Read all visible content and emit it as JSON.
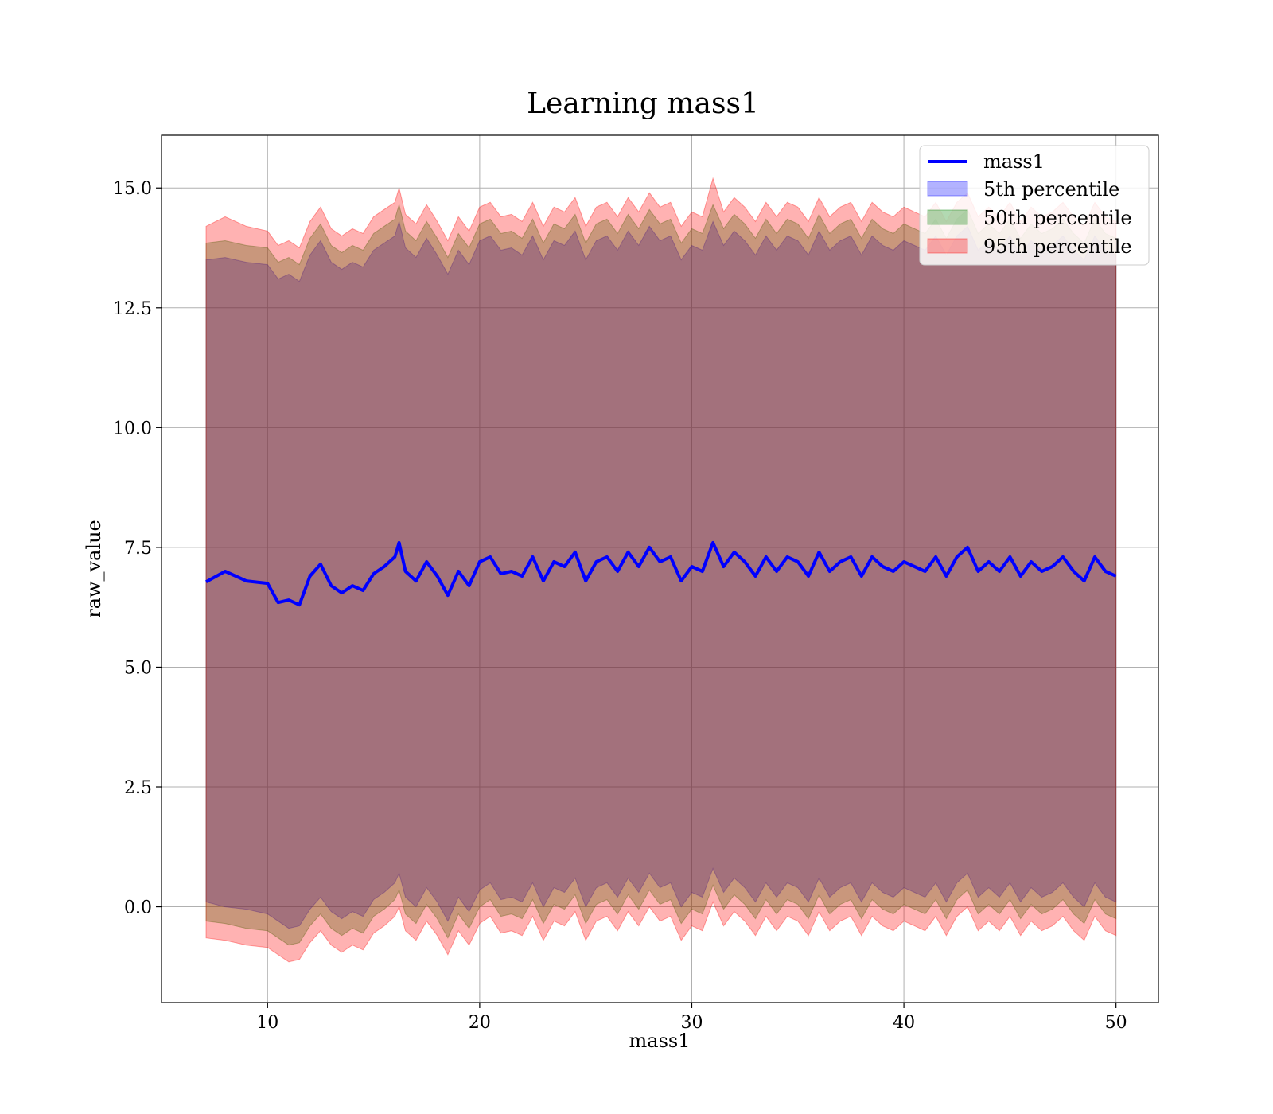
{
  "chart_data": {
    "type": "area",
    "title": "Learning mass1",
    "xlabel": "mass1",
    "ylabel": "raw_value",
    "xlim": [
      5,
      52
    ],
    "ylim": [
      -2.0,
      16.1
    ],
    "xticks": [
      10,
      20,
      30,
      40,
      50
    ],
    "xtick_labels": [
      "10",
      "20",
      "30",
      "40",
      "50"
    ],
    "yticks": [
      0.0,
      2.5,
      5.0,
      7.5,
      10.0,
      12.5,
      15.0
    ],
    "ytick_labels": [
      "0.0",
      "2.5",
      "5.0",
      "7.5",
      "10.0",
      "12.5",
      "15.0"
    ],
    "grid": true,
    "legend_position": "top-right",
    "x": [
      7.1,
      8.0,
      9.0,
      10.0,
      10.5,
      11.0,
      11.5,
      12.0,
      12.5,
      13.0,
      13.5,
      14.0,
      14.5,
      15.0,
      15.5,
      16.0,
      16.2,
      16.5,
      17.0,
      17.5,
      18.0,
      18.5,
      19.0,
      19.5,
      20.0,
      20.5,
      21.0,
      21.5,
      22.0,
      22.5,
      23.0,
      23.5,
      24.0,
      24.5,
      25.0,
      25.5,
      26.0,
      26.5,
      27.0,
      27.5,
      28.0,
      28.5,
      29.0,
      29.5,
      30.0,
      30.5,
      31.0,
      31.5,
      32.0,
      32.5,
      33.0,
      33.5,
      34.0,
      34.5,
      35.0,
      35.5,
      36.0,
      36.5,
      37.0,
      37.5,
      38.0,
      38.5,
      39.0,
      39.5,
      40.0,
      40.5,
      41.0,
      41.5,
      42.0,
      42.5,
      43.0,
      43.5,
      44.0,
      44.5,
      45.0,
      45.5,
      46.0,
      46.5,
      47.0,
      47.5,
      48.0,
      48.5,
      49.0,
      49.5,
      50.0
    ],
    "series": [
      {
        "name": "mass1",
        "type": "line",
        "color": "#0000ff",
        "values": [
          6.78,
          7.0,
          6.8,
          6.75,
          6.35,
          6.4,
          6.3,
          6.9,
          7.15,
          6.7,
          6.55,
          6.7,
          6.6,
          6.95,
          7.1,
          7.3,
          7.6,
          7.0,
          6.8,
          7.2,
          6.9,
          6.5,
          7.0,
          6.7,
          7.2,
          7.3,
          6.95,
          7.0,
          6.9,
          7.3,
          6.8,
          7.2,
          7.1,
          7.4,
          6.8,
          7.2,
          7.3,
          7.0,
          7.4,
          7.1,
          7.5,
          7.2,
          7.3,
          6.8,
          7.1,
          7.0,
          7.6,
          7.1,
          7.4,
          7.2,
          6.9,
          7.3,
          7.0,
          7.3,
          7.2,
          6.9,
          7.4,
          7.0,
          7.2,
          7.3,
          6.9,
          7.3,
          7.1,
          7.0,
          7.2,
          7.1,
          7.0,
          7.3,
          6.9,
          7.3,
          7.5,
          7.0,
          7.2,
          7.0,
          7.3,
          6.9,
          7.2,
          7.0,
          7.1,
          7.3,
          7.0,
          6.8,
          7.3,
          7.0,
          6.9
        ]
      },
      {
        "name": "5th percentile",
        "type": "band",
        "color": "#0000ff",
        "lower": [
          0.1,
          0.0,
          -0.05,
          -0.15,
          -0.3,
          -0.45,
          -0.4,
          -0.05,
          0.2,
          -0.1,
          -0.25,
          -0.1,
          -0.2,
          0.15,
          0.3,
          0.5,
          0.7,
          0.2,
          0.0,
          0.4,
          0.1,
          -0.3,
          0.2,
          -0.1,
          0.35,
          0.5,
          0.15,
          0.2,
          0.1,
          0.5,
          0.0,
          0.4,
          0.3,
          0.6,
          0.0,
          0.4,
          0.5,
          0.2,
          0.6,
          0.3,
          0.7,
          0.4,
          0.5,
          0.0,
          0.3,
          0.2,
          0.8,
          0.3,
          0.6,
          0.4,
          0.1,
          0.5,
          0.2,
          0.5,
          0.4,
          0.1,
          0.6,
          0.2,
          0.4,
          0.5,
          0.1,
          0.5,
          0.3,
          0.2,
          0.4,
          0.3,
          0.2,
          0.5,
          0.1,
          0.5,
          0.7,
          0.2,
          0.4,
          0.2,
          0.5,
          0.1,
          0.4,
          0.2,
          0.3,
          0.5,
          0.2,
          0.0,
          0.5,
          0.2,
          0.1
        ],
        "upper": [
          13.5,
          13.55,
          13.45,
          13.4,
          13.1,
          13.2,
          13.05,
          13.6,
          13.9,
          13.45,
          13.3,
          13.45,
          13.35,
          13.7,
          13.85,
          14.0,
          14.3,
          13.75,
          13.55,
          13.95,
          13.6,
          13.2,
          13.7,
          13.4,
          13.9,
          14.0,
          13.7,
          13.75,
          13.6,
          14.0,
          13.5,
          13.9,
          13.8,
          14.1,
          13.5,
          13.9,
          14.0,
          13.7,
          14.1,
          13.8,
          14.2,
          13.9,
          14.0,
          13.5,
          13.8,
          13.7,
          14.3,
          13.8,
          14.1,
          13.9,
          13.6,
          14.0,
          13.7,
          14.0,
          13.9,
          13.6,
          14.1,
          13.7,
          13.9,
          14.0,
          13.6,
          14.0,
          13.8,
          13.7,
          13.9,
          13.8,
          13.7,
          14.0,
          13.6,
          14.0,
          14.2,
          13.7,
          13.9,
          13.7,
          14.0,
          13.6,
          13.9,
          13.7,
          13.8,
          14.0,
          13.7,
          13.5,
          14.0,
          13.7,
          13.6
        ]
      },
      {
        "name": "50th percentile",
        "type": "band",
        "color": "#008000",
        "lower": [
          -0.3,
          -0.35,
          -0.45,
          -0.5,
          -0.65,
          -0.8,
          -0.75,
          -0.4,
          -0.15,
          -0.45,
          -0.6,
          -0.45,
          -0.55,
          -0.2,
          -0.05,
          0.15,
          0.35,
          -0.15,
          -0.35,
          0.05,
          -0.25,
          -0.65,
          -0.15,
          -0.45,
          0.0,
          0.15,
          -0.2,
          -0.15,
          -0.25,
          0.15,
          -0.35,
          0.05,
          -0.05,
          0.25,
          -0.35,
          0.05,
          0.15,
          -0.15,
          0.25,
          -0.05,
          0.35,
          0.05,
          0.15,
          -0.35,
          -0.05,
          -0.15,
          0.45,
          -0.05,
          0.25,
          0.05,
          -0.25,
          0.15,
          -0.15,
          0.15,
          0.05,
          -0.25,
          0.25,
          -0.15,
          0.05,
          0.15,
          -0.25,
          0.15,
          -0.05,
          -0.15,
          0.05,
          -0.05,
          -0.15,
          0.15,
          -0.25,
          0.15,
          0.35,
          -0.15,
          0.05,
          -0.15,
          0.15,
          -0.25,
          0.05,
          -0.15,
          -0.05,
          0.15,
          -0.15,
          -0.35,
          0.15,
          -0.15,
          -0.25
        ],
        "upper": [
          13.85,
          13.9,
          13.8,
          13.75,
          13.45,
          13.55,
          13.4,
          13.95,
          14.25,
          13.8,
          13.65,
          13.8,
          13.7,
          14.05,
          14.2,
          14.35,
          14.65,
          14.1,
          13.9,
          14.3,
          13.95,
          13.55,
          14.05,
          13.75,
          14.25,
          14.35,
          14.05,
          14.1,
          13.95,
          14.35,
          13.85,
          14.25,
          14.15,
          14.45,
          13.85,
          14.25,
          14.35,
          14.05,
          14.45,
          14.15,
          14.55,
          14.25,
          14.35,
          13.85,
          14.15,
          14.05,
          14.65,
          14.15,
          14.45,
          14.25,
          13.95,
          14.35,
          14.05,
          14.35,
          14.25,
          13.95,
          14.45,
          14.05,
          14.25,
          14.35,
          13.95,
          14.35,
          14.15,
          14.05,
          14.25,
          14.15,
          14.05,
          14.35,
          13.95,
          14.35,
          14.55,
          14.05,
          14.25,
          14.05,
          14.35,
          13.95,
          14.25,
          14.05,
          14.15,
          14.35,
          14.05,
          13.85,
          14.35,
          14.05,
          13.95
        ]
      },
      {
        "name": "95th percentile",
        "type": "band",
        "color": "#ff0000",
        "lower": [
          -0.65,
          -0.7,
          -0.8,
          -0.85,
          -1.0,
          -1.15,
          -1.1,
          -0.75,
          -0.5,
          -0.8,
          -0.95,
          -0.8,
          -0.9,
          -0.55,
          -0.4,
          -0.2,
          0.0,
          -0.5,
          -0.7,
          -0.3,
          -0.6,
          -1.0,
          -0.5,
          -0.8,
          -0.35,
          -0.2,
          -0.55,
          -0.5,
          -0.6,
          -0.2,
          -0.7,
          -0.3,
          -0.4,
          -0.1,
          -0.7,
          -0.3,
          -0.2,
          -0.5,
          -0.1,
          -0.4,
          0.0,
          -0.3,
          -0.2,
          -0.7,
          -0.4,
          -0.5,
          0.1,
          -0.4,
          -0.1,
          -0.3,
          -0.6,
          -0.2,
          -0.5,
          -0.2,
          -0.3,
          -0.6,
          -0.1,
          -0.5,
          -0.3,
          -0.2,
          -0.6,
          -0.2,
          -0.4,
          -0.5,
          -0.3,
          -0.4,
          -0.5,
          -0.2,
          -0.6,
          -0.2,
          0.0,
          -0.5,
          -0.3,
          -0.5,
          -0.2,
          -0.6,
          -0.3,
          -0.5,
          -0.4,
          -0.2,
          -0.5,
          -0.7,
          -0.2,
          -0.5,
          -0.6
        ],
        "upper": [
          14.2,
          14.4,
          14.2,
          14.1,
          13.8,
          13.9,
          13.75,
          14.3,
          14.6,
          14.15,
          14.0,
          14.15,
          14.05,
          14.4,
          14.55,
          14.7,
          15.0,
          14.45,
          14.25,
          14.65,
          14.3,
          13.9,
          14.4,
          14.1,
          14.6,
          14.7,
          14.4,
          14.45,
          14.3,
          14.7,
          14.2,
          14.6,
          14.5,
          14.8,
          14.2,
          14.6,
          14.7,
          14.4,
          14.8,
          14.5,
          14.9,
          14.6,
          14.7,
          14.2,
          14.5,
          14.4,
          15.2,
          14.5,
          14.8,
          14.6,
          14.3,
          14.7,
          14.4,
          14.7,
          14.6,
          14.3,
          14.8,
          14.4,
          14.6,
          14.7,
          14.3,
          14.7,
          14.5,
          14.4,
          14.6,
          14.5,
          14.4,
          14.7,
          14.3,
          14.7,
          14.9,
          14.4,
          14.6,
          14.4,
          14.7,
          14.3,
          14.6,
          14.4,
          14.5,
          14.7,
          14.4,
          14.2,
          14.7,
          14.4,
          14.3
        ]
      }
    ]
  }
}
